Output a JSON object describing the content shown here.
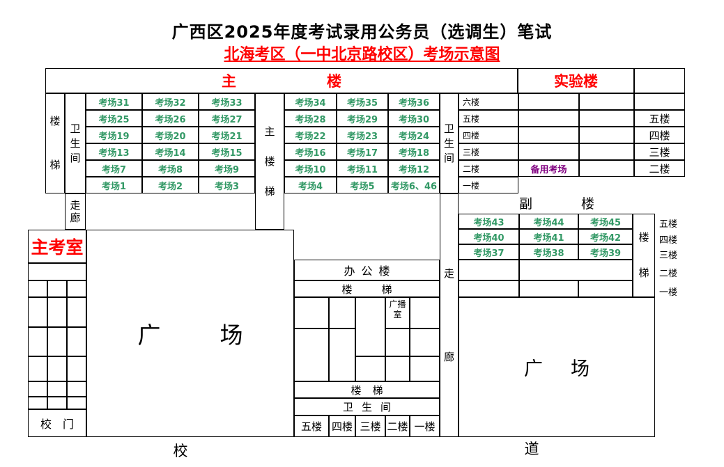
{
  "title": "广西区2025年度考试录用公务员（选调生）笔试",
  "subtitle": "北海考区（一中北京路校区）考场示意图",
  "main_building": {
    "label": "主楼",
    "stair_left": "楼梯",
    "restroom_left": "卫生间",
    "center_stair": "主楼梯",
    "restroom_right": "卫生间",
    "corridor_left": "走廊",
    "floors": [
      "六楼",
      "五楼",
      "四楼",
      "三楼",
      "二楼",
      "一楼"
    ],
    "rooms_left": [
      [
        "考场31",
        "考场32",
        "考场33"
      ],
      [
        "考场25",
        "考场26",
        "考场27"
      ],
      [
        "考场19",
        "考场20",
        "考场21"
      ],
      [
        "考场13",
        "考场14",
        "考场15"
      ],
      [
        "考场7",
        "考场8",
        "考场9"
      ],
      [
        "考场1",
        "考场2",
        "考场3"
      ]
    ],
    "rooms_right": [
      [
        "考场34",
        "考场35",
        "考场36"
      ],
      [
        "考场28",
        "考场29",
        "考场30"
      ],
      [
        "考场22",
        "考场23",
        "考场24"
      ],
      [
        "考场16",
        "考场17",
        "考场18"
      ],
      [
        "考场10",
        "考场11",
        "考场12"
      ],
      [
        "考场4",
        "考场5",
        "考场6、46"
      ]
    ]
  },
  "lab_building": {
    "label": "实验楼",
    "backup_room": "备用考场",
    "floors": [
      "",
      "五楼",
      "四楼",
      "三楼",
      "二楼"
    ]
  },
  "annex_building": {
    "label": "副楼",
    "rooms": [
      [
        "考场43",
        "考场44",
        "考场45"
      ],
      [
        "考场40",
        "考场41",
        "考场42"
      ],
      [
        "考场37",
        "考场38",
        "考场39"
      ]
    ],
    "stair": "楼梯",
    "floors": [
      "五楼",
      "四楼",
      "三楼",
      "二楼",
      "一楼"
    ]
  },
  "office_building": {
    "label": "办公楼",
    "stair_top": "楼梯",
    "broadcast_room": "广播室",
    "stair_bottom": "楼梯",
    "restroom": "卫生间",
    "floors": [
      "五楼",
      "四楼",
      "三楼",
      "二楼",
      "一楼"
    ]
  },
  "admin": {
    "main_exam_office": "主考室",
    "school_gate": "校门"
  },
  "plaza_left": "广场",
  "plaza_right": "广场",
  "corridor_right": "走廊",
  "road": "校道",
  "colors": {
    "room_green": "#339966",
    "backup_purple": "#800080",
    "heading_red": "#FF0000"
  }
}
